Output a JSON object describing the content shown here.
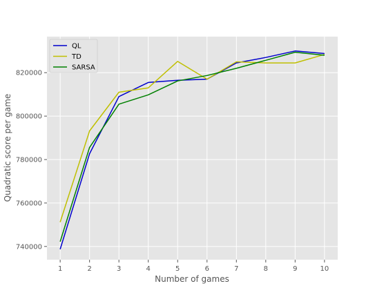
{
  "chart_data": {
    "type": "line",
    "title": "",
    "xlabel": "Number of games",
    "ylabel": "Quadratic score per game",
    "x": [
      1,
      2,
      3,
      4,
      5,
      6,
      7,
      8,
      9,
      10
    ],
    "xticks": [
      "1",
      "2",
      "3",
      "4",
      "5",
      "6",
      "7",
      "8",
      "9",
      "10"
    ],
    "yticks": [
      {
        "value": 740000,
        "label": "740000"
      },
      {
        "value": 760000,
        "label": "760000"
      },
      {
        "value": 780000,
        "label": "780000"
      },
      {
        "value": 800000,
        "label": "800000"
      },
      {
        "value": 820000,
        "label": "820000"
      }
    ],
    "xlim": [
      0.55,
      10.45
    ],
    "ylim": [
      733900,
      836600
    ],
    "grid": true,
    "legend_position": "top-left",
    "background_color": "#e5e5e5",
    "grid_color": "#ffffff",
    "series": [
      {
        "name": "QL",
        "color": "#0000cc",
        "values": [
          738700,
          782700,
          809000,
          815500,
          816500,
          817000,
          824500,
          827000,
          830000,
          828800
        ]
      },
      {
        "name": "TD",
        "color": "#bfbf00",
        "values": [
          751200,
          793200,
          811000,
          813000,
          825200,
          817000,
          825000,
          824500,
          824500,
          828400
        ]
      },
      {
        "name": "SARSA",
        "color": "#008000",
        "values": [
          742200,
          785600,
          805500,
          809800,
          816200,
          818700,
          822000,
          825700,
          829400,
          828000
        ]
      }
    ]
  }
}
